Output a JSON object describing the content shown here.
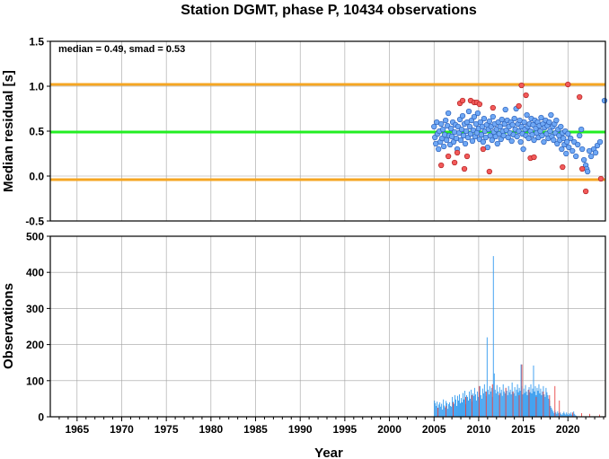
{
  "title": "Station DGMT, phase P, 10434 observations",
  "annotation": "median = 0.49, smad = 0.53",
  "colors": {
    "grid": "#a0a0a0",
    "median_line": "#22ee22",
    "bound_line": "#f5a623",
    "point_normal": "#6fa8f5",
    "point_outlier": "#f25a5a",
    "bar_normal": "#3b9ff0",
    "bar_outlier": "#e83b3b"
  },
  "chart_data": [
    {
      "type": "scatter",
      "panel": "top",
      "ylabel": "Median residual [s]",
      "xlim": [
        1962,
        2024.2
      ],
      "ylim": [
        -0.5,
        1.5
      ],
      "yticks": [
        -0.5,
        0.0,
        0.5,
        1.0,
        1.5
      ],
      "ytick_labels": [
        "-0.5",
        "0.0",
        "0.5",
        "1.0",
        "1.5"
      ],
      "hlines": {
        "median": 0.49,
        "upper": 1.02,
        "lower": -0.04
      },
      "grid": true,
      "normal_points": [
        [
          2005.0,
          0.55
        ],
        [
          2005.1,
          0.43
        ],
        [
          2005.2,
          0.36
        ],
        [
          2005.3,
          0.6
        ],
        [
          2005.4,
          0.47
        ],
        [
          2005.5,
          0.3
        ],
        [
          2005.6,
          0.5
        ],
        [
          2005.7,
          0.38
        ],
        [
          2005.8,
          0.58
        ],
        [
          2005.9,
          0.42
        ],
        [
          2006.0,
          0.52
        ],
        [
          2006.1,
          0.33
        ],
        [
          2006.2,
          0.46
        ],
        [
          2006.3,
          0.62
        ],
        [
          2006.4,
          0.4
        ],
        [
          2006.5,
          0.56
        ],
        [
          2006.6,
          0.7
        ],
        [
          2006.7,
          0.45
        ],
        [
          2006.8,
          0.35
        ],
        [
          2006.9,
          0.53
        ],
        [
          2007.0,
          0.44
        ],
        [
          2007.1,
          0.6
        ],
        [
          2007.2,
          0.38
        ],
        [
          2007.3,
          0.49
        ],
        [
          2007.4,
          0.57
        ],
        [
          2007.5,
          0.42
        ],
        [
          2007.6,
          0.3
        ],
        [
          2007.7,
          0.55
        ],
        [
          2007.8,
          0.48
        ],
        [
          2007.9,
          0.63
        ],
        [
          2008.0,
          0.4
        ],
        [
          2008.1,
          0.52
        ],
        [
          2008.2,
          0.67
        ],
        [
          2008.3,
          0.45
        ],
        [
          2008.4,
          0.58
        ],
        [
          2008.5,
          0.36
        ],
        [
          2008.6,
          0.5
        ],
        [
          2008.7,
          0.6
        ],
        [
          2008.8,
          0.43
        ],
        [
          2008.9,
          0.72
        ],
        [
          2009.0,
          0.55
        ],
        [
          2009.1,
          0.47
        ],
        [
          2009.2,
          0.62
        ],
        [
          2009.3,
          0.39
        ],
        [
          2009.4,
          0.51
        ],
        [
          2009.5,
          0.66
        ],
        [
          2009.6,
          0.44
        ],
        [
          2009.7,
          0.58
        ],
        [
          2009.8,
          0.48
        ],
        [
          2009.9,
          0.7
        ],
        [
          2010.0,
          0.53
        ],
        [
          2010.1,
          0.41
        ],
        [
          2010.2,
          0.6
        ],
        [
          2010.3,
          0.46
        ],
        [
          2010.4,
          0.55
        ],
        [
          2010.5,
          0.38
        ],
        [
          2010.6,
          0.64
        ],
        [
          2010.7,
          0.5
        ],
        [
          2010.8,
          0.43
        ],
        [
          2010.9,
          0.57
        ],
        [
          2011.0,
          0.32
        ],
        [
          2011.1,
          0.52
        ],
        [
          2011.2,
          0.61
        ],
        [
          2011.3,
          0.45
        ],
        [
          2011.4,
          0.55
        ],
        [
          2011.5,
          0.4
        ],
        [
          2011.6,
          0.66
        ],
        [
          2011.7,
          0.49
        ],
        [
          2011.8,
          0.58
        ],
        [
          2011.9,
          0.44
        ],
        [
          2012.0,
          0.52
        ],
        [
          2012.1,
          0.36
        ],
        [
          2012.2,
          0.6
        ],
        [
          2012.3,
          0.47
        ],
        [
          2012.4,
          0.55
        ],
        [
          2012.5,
          0.41
        ],
        [
          2012.6,
          0.63
        ],
        [
          2012.7,
          0.5
        ],
        [
          2012.8,
          0.45
        ],
        [
          2012.9,
          0.58
        ],
        [
          2013.0,
          0.74
        ],
        [
          2013.1,
          0.51
        ],
        [
          2013.2,
          0.62
        ],
        [
          2013.3,
          0.43
        ],
        [
          2013.4,
          0.55
        ],
        [
          2013.5,
          0.48
        ],
        [
          2013.6,
          0.6
        ],
        [
          2013.7,
          0.39
        ],
        [
          2013.8,
          0.57
        ],
        [
          2013.9,
          0.46
        ],
        [
          2014.0,
          0.64
        ],
        [
          2014.1,
          0.52
        ],
        [
          2014.2,
          0.75
        ],
        [
          2014.3,
          0.44
        ],
        [
          2014.4,
          0.58
        ],
        [
          2014.5,
          0.5
        ],
        [
          2014.6,
          0.62
        ],
        [
          2014.7,
          0.38
        ],
        [
          2014.8,
          0.55
        ],
        [
          2014.9,
          0.47
        ],
        [
          2015.0,
          0.3
        ],
        [
          2015.1,
          0.6
        ],
        [
          2015.2,
          0.52
        ],
        [
          2015.3,
          0.45
        ],
        [
          2015.4,
          0.68
        ],
        [
          2015.5,
          0.55
        ],
        [
          2015.6,
          0.42
        ],
        [
          2015.7,
          0.58
        ],
        [
          2015.8,
          0.5
        ],
        [
          2015.9,
          0.64
        ],
        [
          2016.0,
          0.46
        ],
        [
          2016.1,
          0.57
        ],
        [
          2016.2,
          0.4
        ],
        [
          2016.3,
          0.62
        ],
        [
          2016.4,
          0.53
        ],
        [
          2016.5,
          0.48
        ],
        [
          2016.6,
          0.6
        ],
        [
          2016.7,
          0.43
        ],
        [
          2016.8,
          0.56
        ],
        [
          2016.9,
          0.5
        ],
        [
          2017.0,
          0.65
        ],
        [
          2017.1,
          0.45
        ],
        [
          2017.2,
          0.58
        ],
        [
          2017.3,
          0.38
        ],
        [
          2017.4,
          0.54
        ],
        [
          2017.5,
          0.62
        ],
        [
          2017.6,
          0.47
        ],
        [
          2017.7,
          0.56
        ],
        [
          2017.8,
          0.42
        ],
        [
          2017.9,
          0.6
        ],
        [
          2018.0,
          0.5
        ],
        [
          2018.1,
          0.68
        ],
        [
          2018.2,
          0.44
        ],
        [
          2018.3,
          0.55
        ],
        [
          2018.4,
          0.4
        ],
        [
          2018.5,
          0.58
        ],
        [
          2018.6,
          0.48
        ],
        [
          2018.7,
          0.62
        ],
        [
          2018.8,
          0.36
        ],
        [
          2018.9,
          0.52
        ],
        [
          2019.0,
          0.45
        ],
        [
          2019.1,
          0.4
        ],
        [
          2019.2,
          0.55
        ],
        [
          2019.3,
          0.3
        ],
        [
          2019.4,
          0.48
        ],
        [
          2019.5,
          0.42
        ],
        [
          2019.6,
          0.35
        ],
        [
          2019.7,
          0.5
        ],
        [
          2019.8,
          0.25
        ],
        [
          2019.9,
          0.38
        ],
        [
          2020.0,
          0.47
        ],
        [
          2020.1,
          0.32
        ],
        [
          2020.3,
          0.42
        ],
        [
          2020.5,
          0.28
        ],
        [
          2020.7,
          0.38
        ],
        [
          2020.9,
          0.22
        ],
        [
          2021.1,
          0.35
        ],
        [
          2021.3,
          0.45
        ],
        [
          2021.5,
          0.52
        ],
        [
          2021.6,
          0.3
        ],
        [
          2021.8,
          0.18
        ],
        [
          2022.0,
          0.12
        ],
        [
          2022.1,
          0.08
        ],
        [
          2022.2,
          0.05
        ],
        [
          2022.4,
          0.28
        ],
        [
          2022.6,
          0.22
        ],
        [
          2022.9,
          0.3
        ],
        [
          2023.1,
          0.26
        ],
        [
          2023.3,
          0.34
        ],
        [
          2023.6,
          0.38
        ],
        [
          2024.1,
          0.84
        ]
      ],
      "outlier_points": [
        [
          2005.8,
          0.12
        ],
        [
          2006.6,
          0.22
        ],
        [
          2007.3,
          0.15
        ],
        [
          2007.6,
          0.26
        ],
        [
          2007.9,
          0.81
        ],
        [
          2008.2,
          0.84
        ],
        [
          2008.4,
          0.08
        ],
        [
          2008.7,
          0.22
        ],
        [
          2009.1,
          0.84
        ],
        [
          2009.5,
          0.82
        ],
        [
          2009.8,
          0.82
        ],
        [
          2010.1,
          0.8
        ],
        [
          2010.5,
          0.3
        ],
        [
          2011.2,
          0.05
        ],
        [
          2011.6,
          0.76
        ],
        [
          2014.5,
          0.78
        ],
        [
          2014.8,
          1.01
        ],
        [
          2015.3,
          0.9
        ],
        [
          2015.8,
          0.2
        ],
        [
          2016.2,
          0.21
        ],
        [
          2019.4,
          0.1
        ],
        [
          2020.0,
          1.02
        ],
        [
          2021.3,
          0.88
        ],
        [
          2021.6,
          0.08
        ],
        [
          2022.0,
          -0.17
        ],
        [
          2023.7,
          -0.03
        ]
      ]
    },
    {
      "type": "bar",
      "panel": "bottom",
      "ylabel": "Observations",
      "xlabel": "Year",
      "xlim": [
        1962,
        2024.2
      ],
      "ylim": [
        0,
        500
      ],
      "yticks": [
        0,
        100,
        200,
        300,
        400,
        500
      ],
      "ytick_labels": [
        "0",
        "100",
        "200",
        "300",
        "400",
        "500"
      ],
      "xticks": [
        1965,
        1970,
        1975,
        1980,
        1985,
        1990,
        1995,
        2000,
        2005,
        2010,
        2015,
        2020
      ],
      "xtick_labels": [
        "1965",
        "1970",
        "1975",
        "1980",
        "1985",
        "1990",
        "1995",
        "2000",
        "2005",
        "2010",
        "2015",
        "2020"
      ],
      "grid": true,
      "range_start": 2005.0,
      "bin_width": 0.1,
      "values": [
        45,
        38,
        30,
        42,
        25,
        34,
        40,
        28,
        36,
        20,
        48,
        31,
        26,
        44,
        38,
        22,
        35,
        40,
        30,
        28,
        55,
        42,
        36,
        60,
        48,
        30,
        58,
        45,
        62,
        38,
        52,
        40,
        66,
        48,
        72,
        35,
        60,
        55,
        45,
        70,
        50,
        75,
        42,
        65,
        58,
        80,
        62,
        45,
        70,
        55,
        68,
        85,
        60,
        50,
        78,
        65,
        90,
        70,
        58,
        220,
        75,
        62,
        85,
        70,
        80,
        55,
        445,
        120,
        75,
        65,
        88,
        70,
        60,
        82,
        66,
        75,
        58,
        90,
        70,
        65,
        80,
        72,
        60,
        85,
        68,
        75,
        62,
        95,
        70,
        65,
        82,
        58,
        75,
        90,
        68,
        80,
        72,
        145,
        85,
        62,
        78,
        66,
        88,
        70,
        60,
        75,
        82,
        68,
        90,
        65,
        78,
        142,
        70,
        85,
        60,
        80,
        72,
        90,
        65,
        78,
        60,
        70,
        85,
        62,
        55,
        80,
        68,
        60,
        50,
        45,
        30,
        25,
        20,
        15,
        10,
        18,
        12,
        8,
        15,
        10,
        6,
        12,
        8,
        5,
        10,
        14,
        9,
        6,
        12,
        8,
        5,
        10,
        7,
        12,
        6,
        9,
        15,
        8,
        4,
        3
      ],
      "outlier_overlay": [
        [
          2005.4,
          25
        ],
        [
          2006.3,
          30
        ],
        [
          2007.1,
          40
        ],
        [
          2008.5,
          55
        ],
        [
          2009.2,
          60
        ],
        [
          2010.0,
          85
        ],
        [
          2010.8,
          70
        ],
        [
          2011.5,
          90
        ],
        [
          2012.3,
          65
        ],
        [
          2013.0,
          80
        ],
        [
          2013.8,
          70
        ],
        [
          2014.5,
          60
        ],
        [
          2014.8,
          145
        ],
        [
          2015.6,
          75
        ],
        [
          2016.4,
          55
        ],
        [
          2017.2,
          70
        ],
        [
          2017.9,
          60
        ],
        [
          2018.5,
          85
        ],
        [
          2019.0,
          45
        ],
        [
          2020.5,
          12
        ],
        [
          2021.5,
          10
        ],
        [
          2022.4,
          8
        ],
        [
          2023.5,
          6
        ]
      ]
    }
  ]
}
